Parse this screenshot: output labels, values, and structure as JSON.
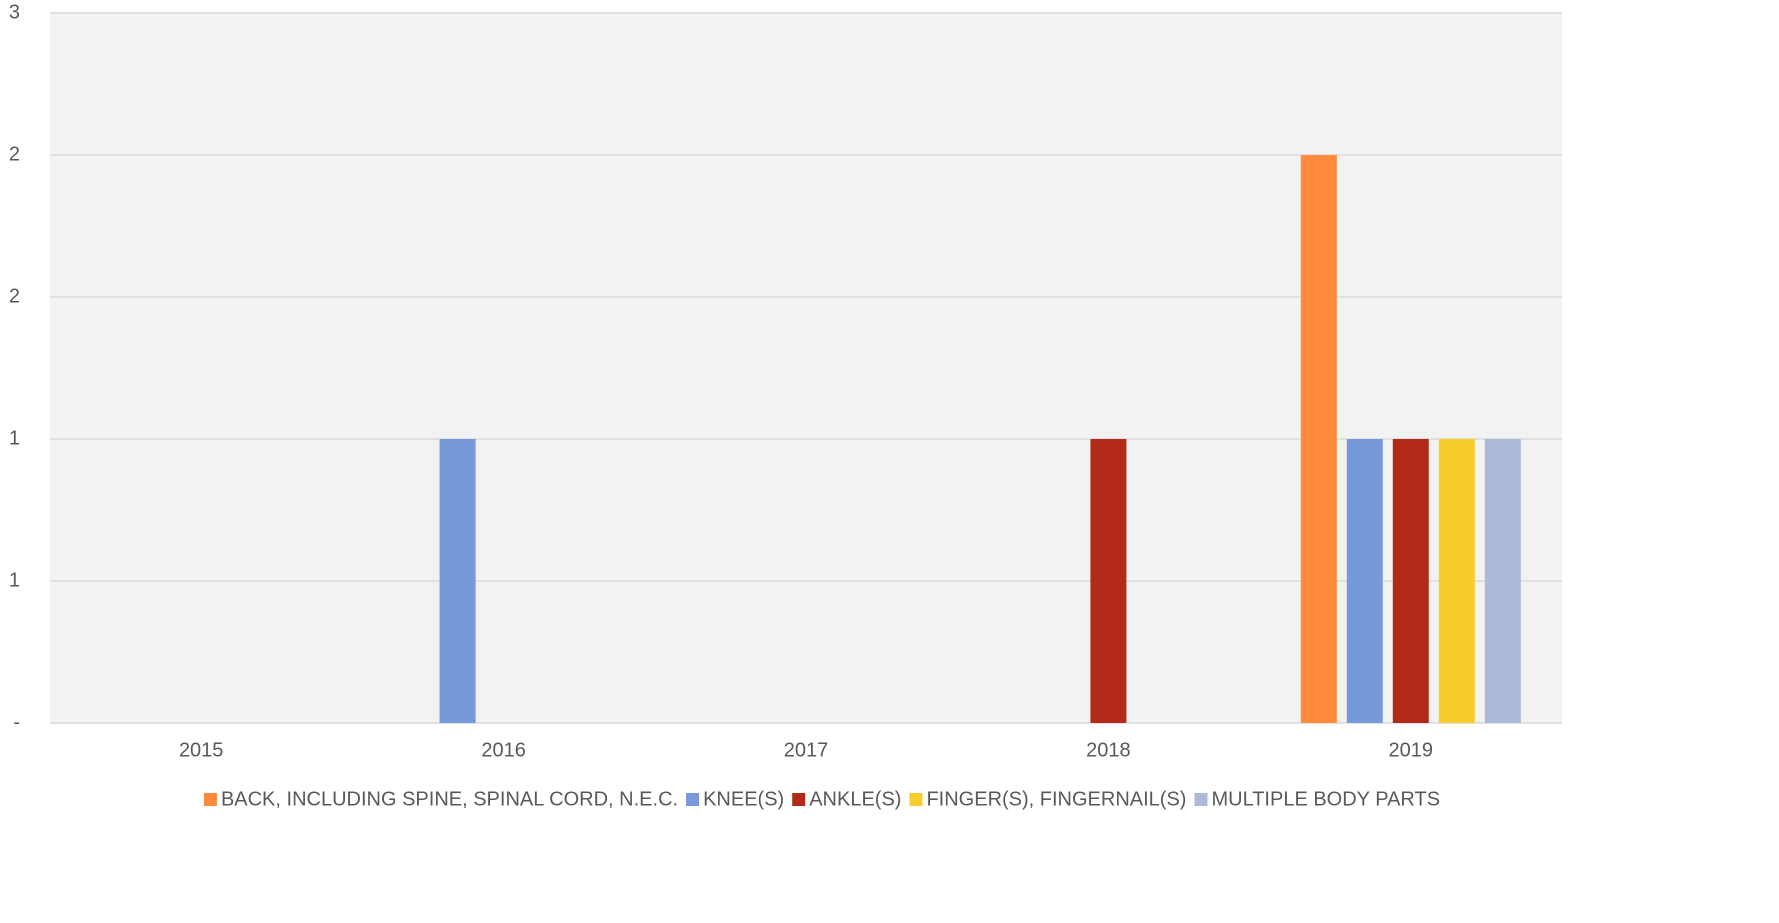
{
  "chart_data": {
    "type": "bar",
    "categories": [
      "2015",
      "2016",
      "2017",
      "2018",
      "2019"
    ],
    "series": [
      {
        "name": "BACK, INCLUDING SPINE, SPINAL CORD, N.E.C.",
        "color": "#ff8a3d",
        "values": [
          0,
          0,
          0,
          0,
          2
        ]
      },
      {
        "name": "KNEE(S)",
        "color": "#7799d9",
        "values": [
          0,
          1,
          0,
          0,
          1
        ]
      },
      {
        "name": "ANKLE(S)",
        "color": "#b22b18",
        "values": [
          0,
          0,
          0,
          1,
          1
        ]
      },
      {
        "name": "FINGER(S), FINGERNAIL(S)",
        "color": "#f5cd2c",
        "values": [
          0,
          0,
          0,
          0,
          1
        ]
      },
      {
        "name": "MULTIPLE BODY PARTS",
        "color": "#adb9d8",
        "values": [
          0,
          0,
          0,
          0,
          1
        ]
      }
    ],
    "ylim": [
      0,
      2.5
    ],
    "yticks": [
      {
        "value": 0,
        "label": "-"
      },
      {
        "value": 0.5,
        "label": "1"
      },
      {
        "value": 1,
        "label": "1"
      },
      {
        "value": 1.5,
        "label": "2"
      },
      {
        "value": 2,
        "label": "2"
      },
      {
        "value": 2.5,
        "label": "3"
      }
    ],
    "grid": true,
    "legend": "bottom"
  }
}
